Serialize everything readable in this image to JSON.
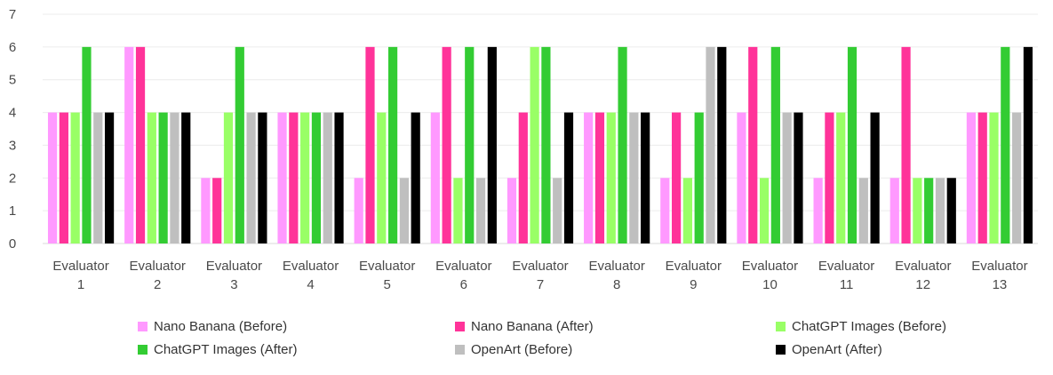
{
  "chart_data": {
    "type": "bar",
    "categories": [
      [
        "Evaluator",
        "1"
      ],
      [
        "Evaluator",
        "2"
      ],
      [
        "Evaluator",
        "3"
      ],
      [
        "Evaluator",
        "4"
      ],
      [
        "Evaluator",
        "5"
      ],
      [
        "Evaluator",
        "6"
      ],
      [
        "Evaluator",
        "7"
      ],
      [
        "Evaluator",
        "8"
      ],
      [
        "Evaluator",
        "9"
      ],
      [
        "Evaluator",
        "10"
      ],
      [
        "Evaluator",
        "11"
      ],
      [
        "Evaluator",
        "12"
      ],
      [
        "Evaluator",
        "13"
      ]
    ],
    "series": [
      {
        "name": "Nano Banana (Before)",
        "color": "#ff99ff",
        "values": [
          4,
          6,
          2,
          4,
          2,
          4,
          2,
          4,
          2,
          4,
          2,
          2,
          4
        ]
      },
      {
        "name": "Nano Banana (After)",
        "color": "#ff3399",
        "values": [
          4,
          6,
          2,
          4,
          6,
          6,
          4,
          4,
          4,
          6,
          4,
          6,
          4
        ]
      },
      {
        "name": "ChatGPT Images (Before)",
        "color": "#99ff66",
        "values": [
          4,
          4,
          4,
          4,
          4,
          2,
          6,
          4,
          2,
          2,
          4,
          2,
          4
        ]
      },
      {
        "name": "ChatGPT Images (After)",
        "color": "#33cc33",
        "values": [
          6,
          4,
          6,
          4,
          6,
          6,
          6,
          6,
          4,
          6,
          6,
          2,
          6
        ]
      },
      {
        "name": "OpenArt (Before)",
        "color": "#bfbfbf",
        "values": [
          4,
          4,
          4,
          4,
          2,
          2,
          2,
          4,
          6,
          4,
          2,
          2,
          4
        ]
      },
      {
        "name": "OpenArt (After)",
        "color": "#000000",
        "values": [
          4,
          4,
          4,
          4,
          4,
          6,
          4,
          4,
          6,
          4,
          4,
          2,
          6
        ]
      }
    ],
    "yticks": [
      "0",
      "1",
      "2",
      "3",
      "4",
      "5",
      "6",
      "7"
    ],
    "ylim": [
      0,
      7
    ],
    "grid": true,
    "legend_position": "bottom"
  }
}
